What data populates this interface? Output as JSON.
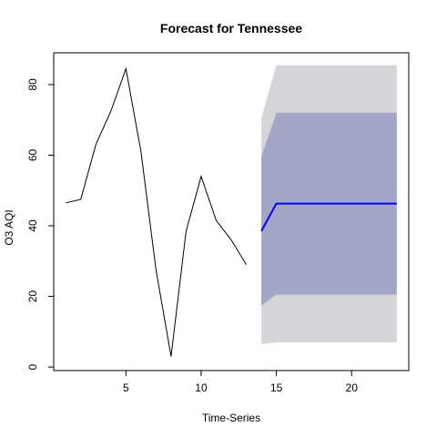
{
  "chart_data": {
    "type": "line",
    "title": "Forecast for Tennessee",
    "xlabel": "Time-Series",
    "ylabel": "O3 AQI",
    "xlim": [
      0.2,
      23.8
    ],
    "ylim": [
      -1,
      89
    ],
    "x_ticks": [
      5,
      10,
      15,
      20
    ],
    "y_ticks": [
      0,
      20,
      40,
      60,
      80
    ],
    "grid": false,
    "history": {
      "x": [
        1,
        2,
        3,
        4,
        5,
        6,
        7,
        8,
        9,
        10,
        11,
        12,
        13
      ],
      "y": [
        46.5,
        47.5,
        63,
        72.5,
        84.5,
        61,
        27.5,
        3,
        38.5,
        54,
        41.5,
        36,
        29
      ]
    },
    "forecast": {
      "x": [
        14,
        15,
        16,
        17,
        18,
        19,
        20,
        21,
        22,
        23
      ],
      "mean": [
        38.5,
        46.3,
        46.3,
        46.3,
        46.3,
        46.3,
        46.3,
        46.3,
        46.3,
        46.3
      ],
      "lower80": [
        17.5,
        20.5,
        20.5,
        20.5,
        20.5,
        20.5,
        20.5,
        20.5,
        20.5,
        20.5
      ],
      "upper80": [
        59.5,
        72,
        72,
        72,
        72,
        72,
        72,
        72,
        72,
        72
      ],
      "lower95": [
        6.5,
        7,
        7,
        7,
        7,
        7,
        7,
        7,
        7,
        7
      ],
      "upper95": [
        70.5,
        85.5,
        85.5,
        85.5,
        85.5,
        85.5,
        85.5,
        85.5,
        85.5,
        85.5
      ]
    },
    "colors": {
      "history": "#000000",
      "mean": "#0000ff",
      "band80": "#a3a6c6",
      "band95": "#d4d4d9",
      "frame": "#000000"
    }
  }
}
